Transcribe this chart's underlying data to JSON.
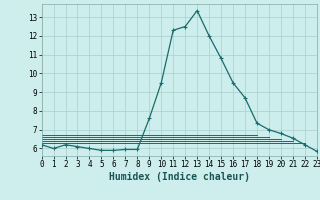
{
  "xlabel": "Humidex (Indice chaleur)",
  "bg_color": "#ceeeed",
  "grid_color": "#aed4d3",
  "line_color": "#1a6b6b",
  "series": [
    [
      0,
      6.2
    ],
    [
      1,
      6.0
    ],
    [
      2,
      6.2
    ],
    [
      3,
      6.1
    ],
    [
      4,
      6.0
    ],
    [
      5,
      5.9
    ],
    [
      6,
      5.9
    ],
    [
      7,
      5.95
    ],
    [
      8,
      5.95
    ],
    [
      9,
      7.6
    ],
    [
      10,
      9.5
    ],
    [
      11,
      12.3
    ],
    [
      12,
      12.5
    ],
    [
      13,
      13.35
    ],
    [
      14,
      12.0
    ],
    [
      15,
      10.8
    ],
    [
      16,
      9.5
    ],
    [
      17,
      8.7
    ],
    [
      18,
      7.35
    ],
    [
      19,
      7.0
    ],
    [
      20,
      6.8
    ],
    [
      21,
      6.55
    ],
    [
      22,
      6.2
    ],
    [
      23,
      5.85
    ]
  ],
  "extra_lines": [
    {
      "x": [
        0,
        22
      ],
      "y": [
        6.3,
        6.3
      ]
    },
    {
      "x": [
        0,
        21
      ],
      "y": [
        6.4,
        6.4
      ]
    },
    {
      "x": [
        0,
        20
      ],
      "y": [
        6.5,
        6.5
      ]
    },
    {
      "x": [
        0,
        19
      ],
      "y": [
        6.6,
        6.6
      ]
    },
    {
      "x": [
        0,
        18
      ],
      "y": [
        6.7,
        6.7
      ]
    }
  ],
  "xlim": [
    0,
    23
  ],
  "ylim": [
    5.6,
    13.7
  ],
  "yticks": [
    6,
    7,
    8,
    9,
    10,
    11,
    12,
    13
  ],
  "xticks": [
    0,
    1,
    2,
    3,
    4,
    5,
    6,
    7,
    8,
    9,
    10,
    11,
    12,
    13,
    14,
    15,
    16,
    17,
    18,
    19,
    20,
    21,
    22,
    23
  ],
  "tick_fontsize": 5.5,
  "xlabel_fontsize": 7.0
}
